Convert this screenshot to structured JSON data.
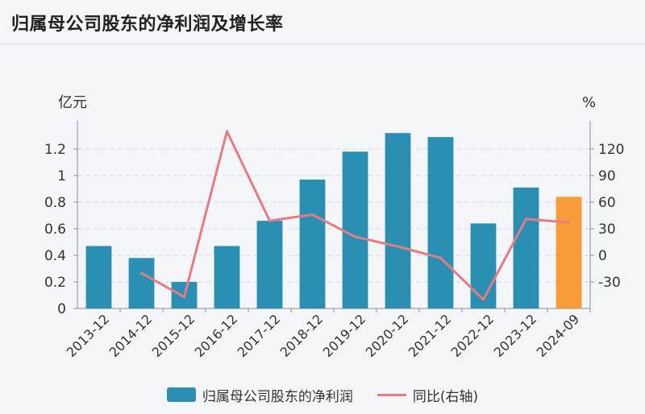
{
  "header": {
    "title": "归属母公司股东的净利润及增长率"
  },
  "colors": {
    "bar": "#2a8fb3",
    "bar_highlight": "#f79c38",
    "line": "#e57c84"
  },
  "chart_data": {
    "type": "bar",
    "categories": [
      "2013-12",
      "2014-12",
      "2015-12",
      "2016-12",
      "2017-12",
      "2018-12",
      "2019-12",
      "2020-12",
      "2021-12",
      "2022-12",
      "2023-12",
      "2024-09"
    ],
    "series": [
      {
        "name": "归属母公司股东的净利润",
        "type": "bar",
        "axis": "left",
        "values": [
          0.47,
          0.38,
          0.2,
          0.47,
          0.66,
          0.97,
          1.18,
          1.32,
          1.29,
          0.64,
          0.91,
          0.84
        ],
        "highlight_last": true
      },
      {
        "name": "同比(右轴)",
        "type": "line",
        "axis": "right",
        "values": [
          null,
          -20,
          -47,
          140,
          39,
          46,
          21,
          10,
          -3,
          -50,
          41,
          37
        ]
      }
    ],
    "y_left": {
      "label": "亿元",
      "ticks": [
        "0",
        "0.2",
        "0.4",
        "0.6",
        "0.8",
        "1",
        "1.2"
      ],
      "tick_values": [
        0,
        0.2,
        0.4,
        0.6,
        0.8,
        1.0,
        1.2
      ],
      "ylim": [
        0,
        1.4
      ]
    },
    "y_right": {
      "label": "%",
      "ticks": [
        "-30",
        "0",
        "30",
        "60",
        "90",
        "120"
      ],
      "tick_values": [
        -30,
        0,
        30,
        60,
        90,
        120
      ],
      "ylim": [
        -60,
        150
      ]
    },
    "grid": true,
    "legend_position": "bottom-center"
  }
}
